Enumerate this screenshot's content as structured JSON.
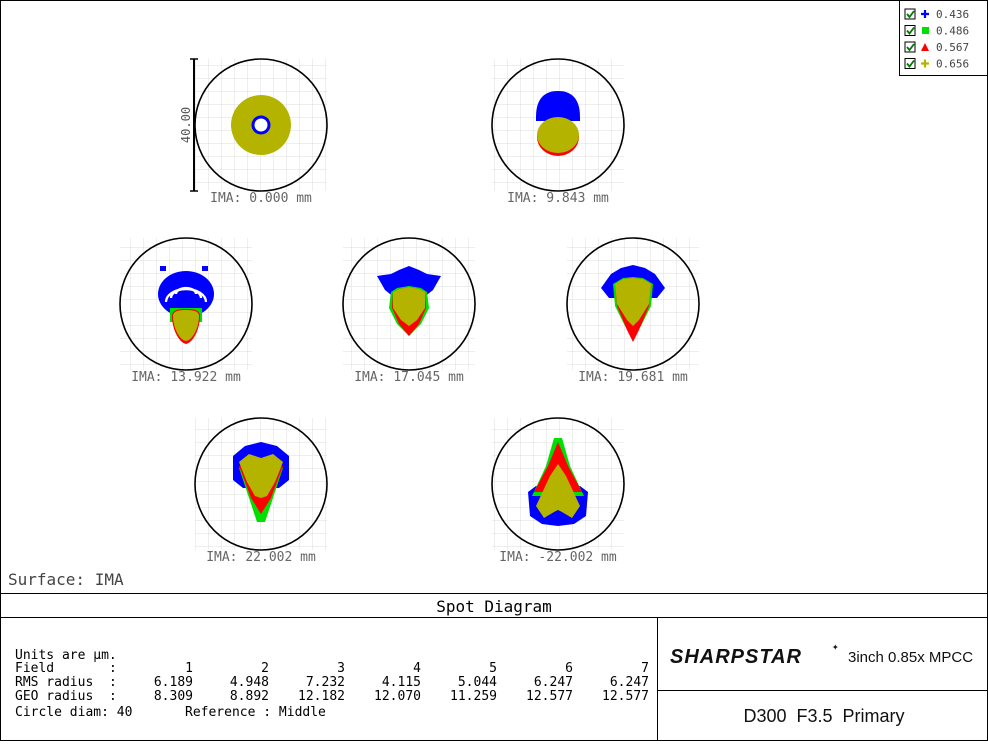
{
  "legend": {
    "items": [
      {
        "label": "0.436",
        "color": "#0000ff",
        "marker": "plus",
        "checked": true
      },
      {
        "label": "0.486",
        "color": "#00e000",
        "marker": "square",
        "checked": true
      },
      {
        "label": "0.567",
        "color": "#ff0000",
        "marker": "triangle",
        "checked": true
      },
      {
        "label": "0.656",
        "color": "#b4b400",
        "marker": "plus",
        "checked": true
      }
    ]
  },
  "scale_bar_label": "40.00",
  "fields": [
    {
      "label": "IMA: 0.000 mm",
      "shape": "ring"
    },
    {
      "label": "IMA: 9.843 mm",
      "shape": "blob"
    },
    {
      "label": "IMA: 13.922 mm",
      "shape": "arcs"
    },
    {
      "label": "IMA: 17.045 mm",
      "shape": "wings"
    },
    {
      "label": "IMA: 19.681 mm",
      "shape": "cone"
    },
    {
      "label": "IMA: 22.002 mm",
      "shape": "kite-down"
    },
    {
      "label": "IMA: -22.002 mm",
      "shape": "kite-up"
    }
  ],
  "surface_label": "Surface: IMA",
  "title": "Spot Diagram",
  "info": {
    "units": "Units are µm.",
    "field_label": "Field",
    "rms_label": "RMS radius",
    "geo_label": "GEO radius",
    "colon": ":",
    "field_numbers": [
      "1",
      "2",
      "3",
      "4",
      "5",
      "6",
      "7"
    ],
    "rms_values": [
      "6.189",
      "4.948",
      "7.232",
      "4.115",
      "5.044",
      "6.247",
      "6.247"
    ],
    "geo_values": [
      "8.309",
      "8.892",
      "12.182",
      "12.070",
      "11.259",
      "12.577",
      "12.577"
    ],
    "circle_diam": "Circle diam: 40",
    "reference": "Reference  : Middle"
  },
  "brand": {
    "logo_text": "SHARPSTAR",
    "product": "3inch 0.85x MPCC",
    "config": "D300  F3.5  Primary"
  }
}
